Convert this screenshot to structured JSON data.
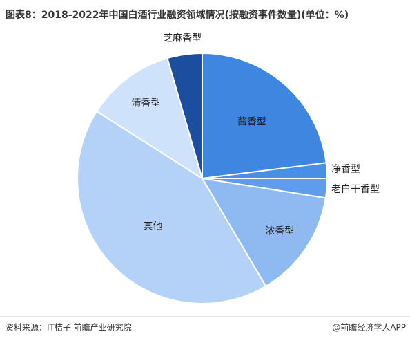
{
  "chart_data": {
    "type": "pie",
    "title": "图表8：2018-2022年中国白酒行业融资领域情况(按融资事件数量)(单位：%)",
    "categories": [
      "酱香型",
      "净香型",
      "老白干香型",
      "浓香型",
      "其他",
      "清香型",
      "芝麻香型"
    ],
    "values": [
      23,
      2,
      2.5,
      14,
      42.5,
      11.5,
      4.5
    ],
    "colors": [
      "#3f86e0",
      "#4a8fe6",
      "#5f9dec",
      "#8fbaf1",
      "#b4d2f7",
      "#cfe2fb",
      "#1b4e9e"
    ]
  },
  "footer": {
    "source": "资料来源：IT桔子 前瞻产业研究院",
    "credit": "@前瞻经济学人APP"
  }
}
